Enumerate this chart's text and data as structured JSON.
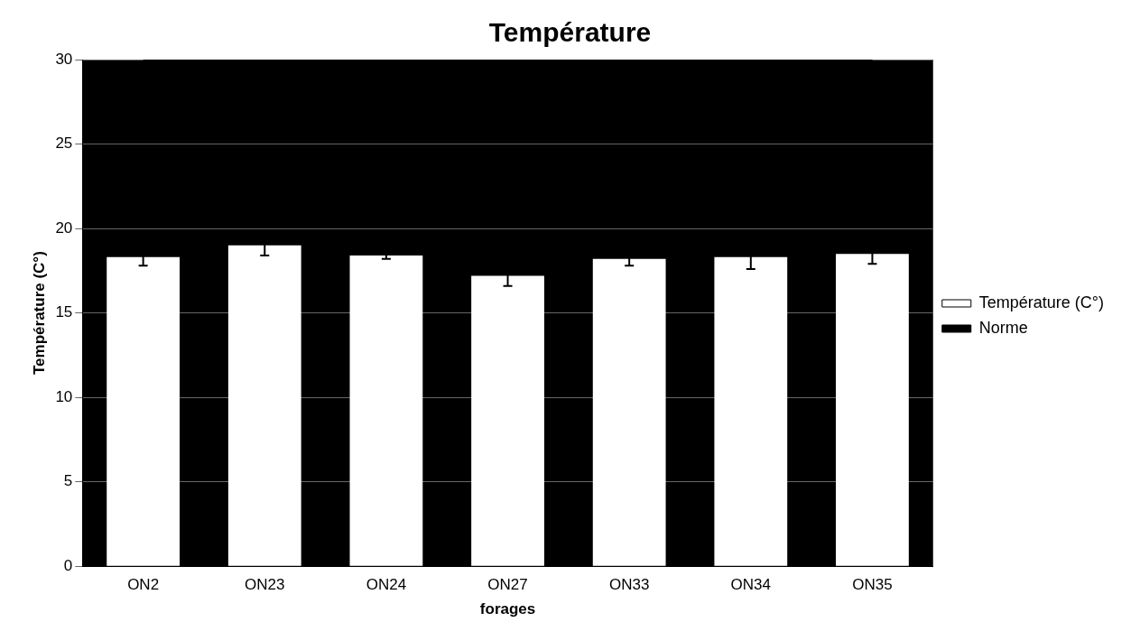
{
  "chart_data": {
    "type": "bar",
    "title": "Température",
    "xlabel": "forages",
    "ylabel": "Température (C°)",
    "categories": [
      "ON2",
      "ON23",
      "ON24",
      "ON27",
      "ON33",
      "ON34",
      "ON35"
    ],
    "series": [
      {
        "name": "Température (C°)",
        "color": "#ffffff",
        "values": [
          18.3,
          19.0,
          18.4,
          17.2,
          18.2,
          18.3,
          18.5
        ],
        "errors": [
          0.5,
          0.6,
          0.2,
          0.6,
          0.4,
          0.7,
          0.6
        ]
      },
      {
        "name": "Norme",
        "type": "line",
        "color": "#000000",
        "values": [
          30,
          30,
          30,
          30,
          30,
          30,
          30
        ]
      }
    ],
    "ylim": [
      0,
      30
    ],
    "yticks": [
      0,
      5,
      10,
      15,
      20,
      25,
      30
    ],
    "grid": "y",
    "legend": "right"
  }
}
